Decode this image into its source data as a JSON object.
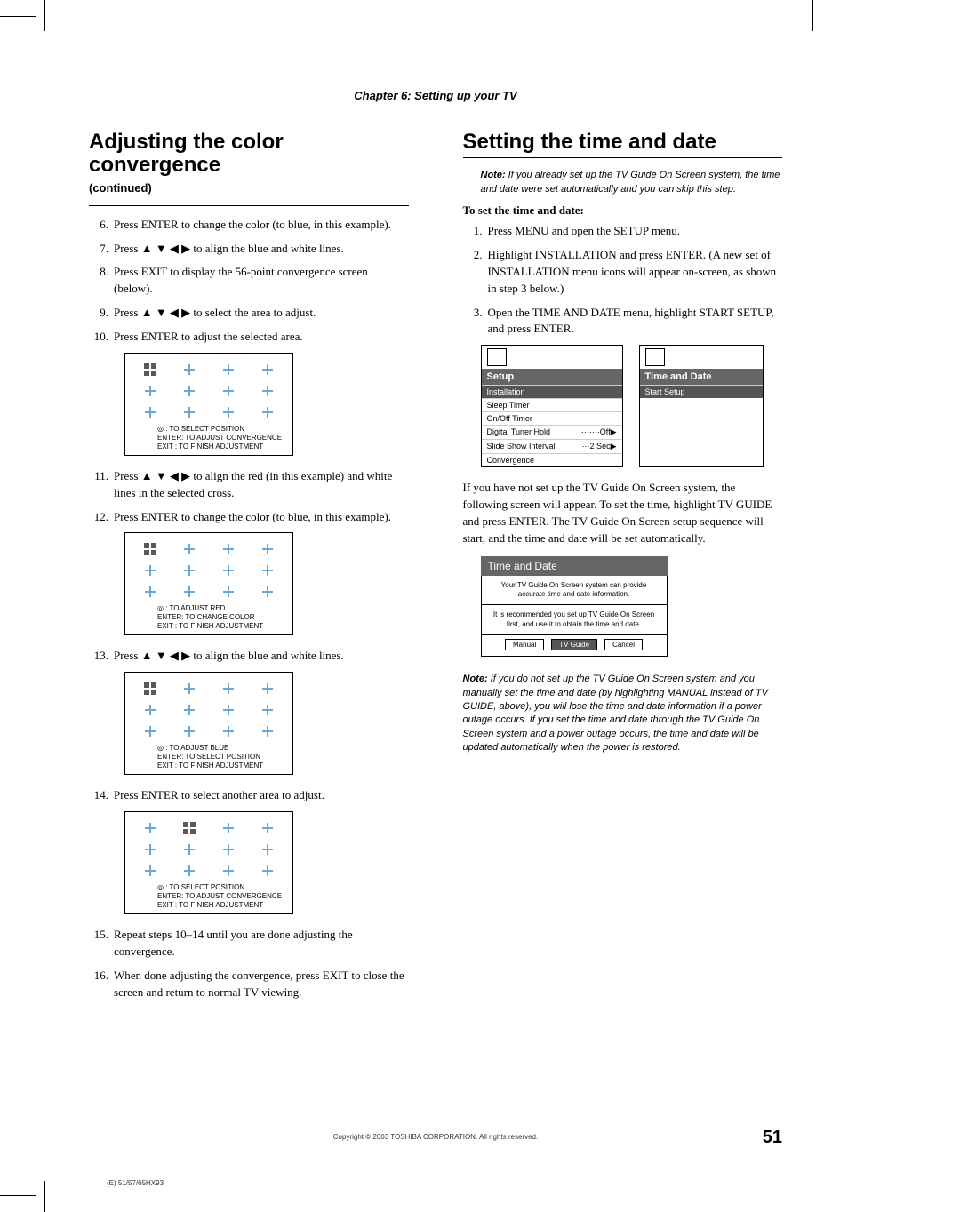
{
  "chapter_header": "Chapter 6: Setting up your TV",
  "left": {
    "h1": "Adjusting the color convergence",
    "continued": "(continued)",
    "steps": [
      {
        "n": "6.",
        "t": "Press ENTER to change the color (to blue, in this example)."
      },
      {
        "n": "7.",
        "t": "Press ▲ ▼ ◀ ▶ to align the blue and white lines."
      },
      {
        "n": "8.",
        "t": "Press EXIT to display the 56-point convergence screen (below)."
      },
      {
        "n": "9.",
        "t": "Press ▲ ▼ ◀ ▶ to select the area to adjust."
      },
      {
        "n": "10.",
        "t": "Press ENTER to adjust the selected area."
      }
    ],
    "box1": {
      "caption": [
        "◎ : TO SELECT POSITION",
        "ENTER: TO ADJUST CONVERGENCE",
        "EXIT   : TO FINISH ADJUSTMENT"
      ],
      "sel_index": 0
    },
    "steps2": [
      {
        "n": "11.",
        "t": "Press ▲ ▼ ◀ ▶ to align the red (in this example) and white lines in the selected cross."
      },
      {
        "n": "12.",
        "t": "Press ENTER to change the color (to blue, in this example)."
      }
    ],
    "box2": {
      "caption": [
        "◎ : TO ADJUST RED",
        "ENTER: TO CHANGE COLOR",
        "EXIT   : TO FINISH ADJUSTMENT"
      ],
      "sel_index": 0
    },
    "steps3": [
      {
        "n": "13.",
        "t": "Press ▲ ▼ ◀ ▶ to align the blue and white lines."
      }
    ],
    "box3": {
      "caption": [
        "◎ : TO ADJUST BLUE",
        "ENTER: TO SELECT POSITION",
        "EXIT   : TO FINISH ADJUSTMENT"
      ],
      "sel_index": 0
    },
    "steps4": [
      {
        "n": "14.",
        "t": "Press ENTER to select another area to adjust."
      }
    ],
    "box4": {
      "caption": [
        "◎ : TO SELECT POSITION",
        "ENTER: TO ADJUST CONVERGENCE",
        "EXIT   : TO FINISH ADJUSTMENT"
      ],
      "sel_index": 1
    },
    "steps5": [
      {
        "n": "15.",
        "t": "Repeat steps 10–14 until you are done adjusting the convergence."
      },
      {
        "n": "16.",
        "t": "When done adjusting the convergence, press EXIT to close the screen and return to normal TV viewing."
      }
    ]
  },
  "right": {
    "h1": "Setting the time and date",
    "note1_label": "Note:",
    "note1": "If you already set up the TV Guide On Screen system, the time and date were set automatically and you can skip this step.",
    "subhead": "To set the time and date:",
    "steps": [
      {
        "n": "1.",
        "t": "Press MENU and open the SETUP menu."
      },
      {
        "n": "2.",
        "t": "Highlight INSTALLATION and press ENTER. (A new set of INSTALLATION menu icons will appear on-screen, as shown in step 3 below.)"
      },
      {
        "n": "3.",
        "t": "Open the TIME AND DATE menu, highlight START SETUP, and press ENTER."
      }
    ],
    "menu_main": {
      "title": "Setup",
      "items": [
        {
          "label": "Installation",
          "hl": true
        },
        {
          "label": "Sleep Timer"
        },
        {
          "label": "On/Off Timer"
        },
        {
          "label": "Digital Tuner Hold",
          "val": "·······Off▶"
        },
        {
          "label": "Slide Show Interval",
          "val": "···2 Sec▶"
        },
        {
          "label": "Convergence"
        }
      ]
    },
    "menu_sub": {
      "title": "Time and Date",
      "items": [
        {
          "label": "Start Setup",
          "hl": true
        }
      ]
    },
    "para": "If you have not set up the TV Guide On Screen system, the following screen will appear. To set the time, highlight TV GUIDE and press ENTER. The TV Guide On Screen setup sequence will start, and the time and date will be set automatically.",
    "tad": {
      "title": "Time and Date",
      "msg1": "Your TV Guide On Screen system can provide accurate time and date information.",
      "msg2": "It is recommended you set up TV Guide On Screen first, and use it to obtain the time and date.",
      "btns": [
        {
          "label": "Manual"
        },
        {
          "label": "TV Guide",
          "hl": true
        },
        {
          "label": "Cancel"
        }
      ]
    },
    "note2_label": "Note:",
    "note2": "If you do not set up the TV Guide On Screen system and you manually set the time and date (by highlighting MANUAL instead of TV GUIDE, above), you will lose the time and date information if a power outage occurs. If you set the time and date through the TV Guide On Screen system and a power outage occurs, the time and date will be updated automatically when the power is restored."
  },
  "footer": {
    "copyright": "Copyright © 2003 TOSHIBA CORPORATION. All rights reserved.",
    "pagenum": "51",
    "code": "(E) 51/57/65HX93"
  },
  "colors": {
    "cross": "#6aa8d8",
    "menu_hl_bg": "#555555",
    "menu_title_bg": "#666666"
  }
}
